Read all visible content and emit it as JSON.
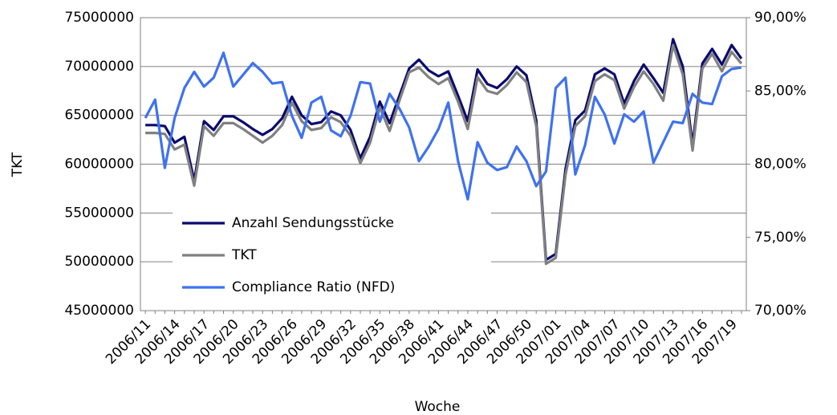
{
  "chart_data": {
    "type": "line",
    "x_label": "Woche",
    "y_label": "TKT",
    "categories": [
      "2006/11",
      null,
      null,
      "2006/14",
      null,
      null,
      "2006/17",
      null,
      null,
      "2006/20",
      null,
      null,
      "2006/23",
      null,
      null,
      "2006/26",
      null,
      null,
      "2006/29",
      null,
      null,
      "2006/32",
      null,
      null,
      "2006/35",
      null,
      null,
      "2006/38",
      null,
      null,
      "2006/41",
      null,
      null,
      "2006/44",
      null,
      null,
      "2006/47",
      null,
      null,
      "2006/50",
      null,
      null,
      "2007/01",
      null,
      null,
      "2007/04",
      null,
      null,
      "2007/07",
      null,
      null,
      "2007/10",
      null,
      null,
      "2007/13",
      null,
      null,
      "2007/16",
      null,
      null,
      "2007/19",
      null
    ],
    "series": [
      {
        "name": "Anzahl Sendungsstücke",
        "color": "#0a0a6e",
        "values": [
          64000000,
          64000000,
          63900000,
          62200000,
          62800000,
          58300000,
          64400000,
          63500000,
          64900000,
          64900000,
          64300000,
          63600000,
          63000000,
          63600000,
          64700000,
          66900000,
          65000000,
          64100000,
          64300000,
          65400000,
          65000000,
          63500000,
          60600000,
          62800000,
          66400000,
          64200000,
          67000000,
          69800000,
          70700000,
          69600000,
          69000000,
          69500000,
          67000000,
          64400000,
          69700000,
          68200000,
          67800000,
          68700000,
          70000000,
          69100000,
          64500000,
          50200000,
          50800000,
          59500000,
          64500000,
          65500000,
          69200000,
          69800000,
          69200000,
          66200000,
          68500000,
          70200000,
          68800000,
          67300000,
          72800000,
          70000000,
          62000000,
          70300000,
          71800000,
          70200000,
          72200000,
          70800000
        ]
      },
      {
        "name": "TKT",
        "color": "#808080",
        "values": [
          63200000,
          63200000,
          63100000,
          61500000,
          62000000,
          57800000,
          63900000,
          62900000,
          64200000,
          64200000,
          63600000,
          62900000,
          62200000,
          62900000,
          64000000,
          66300000,
          64400000,
          63500000,
          63700000,
          64800000,
          64300000,
          62900000,
          60100000,
          62200000,
          65800000,
          63400000,
          66500000,
          69400000,
          69900000,
          68900000,
          68200000,
          68800000,
          66400000,
          63600000,
          68900000,
          67500000,
          67200000,
          68100000,
          69400000,
          68400000,
          63900000,
          49800000,
          50400000,
          58900000,
          63900000,
          64900000,
          68500000,
          69200000,
          68600000,
          65700000,
          67900000,
          69500000,
          68200000,
          66500000,
          72200000,
          69200000,
          61400000,
          69800000,
          71300000,
          69500000,
          71500000,
          70300000
        ]
      },
      {
        "name": "Compliance Ratio (NFD)",
        "color": "#3f72f0",
        "axis": "y2",
        "values": [
          83.15,
          84.4,
          79.75,
          83.15,
          85.2,
          86.3,
          85.3,
          85.9,
          87.6,
          85.3,
          86.1,
          86.9,
          86.3,
          85.5,
          85.6,
          83.3,
          81.8,
          84.2,
          84.6,
          82.3,
          81.9,
          83.3,
          85.6,
          85.5,
          82.9,
          84.8,
          83.8,
          82.5,
          80.2,
          81.2,
          82.4,
          84.2,
          80.2,
          77.6,
          81.5,
          80.1,
          79.6,
          79.8,
          81.2,
          80.2,
          78.5,
          79.5,
          85.2,
          85.9,
          79.3,
          81.3,
          84.6,
          83.4,
          81.4,
          83.4,
          82.9,
          83.6,
          80.1,
          81.5,
          82.9,
          82.8,
          84.8,
          84.2,
          84.1,
          86.0,
          86.5,
          86.6
        ]
      }
    ],
    "ylim": [
      45000000,
      75000000
    ],
    "yticks": [
      45000000,
      50000000,
      55000000,
      60000000,
      65000000,
      70000000,
      75000000
    ],
    "y2lim": [
      70,
      90
    ],
    "y2ticks": [
      {
        "value": 70,
        "label": "70,00%"
      },
      {
        "value": 75,
        "label": "75,00%"
      },
      {
        "value": 80,
        "label": "80,00%"
      },
      {
        "value": 85,
        "label": "85,00%"
      },
      {
        "value": 90,
        "label": "90,00%"
      }
    ],
    "grid": true,
    "legend": "lower left"
  }
}
